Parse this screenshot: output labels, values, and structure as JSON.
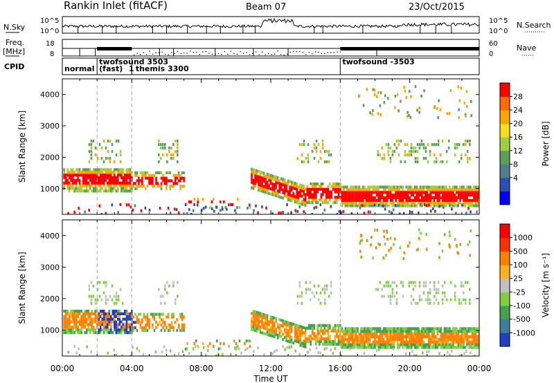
{
  "header": {
    "station": "Rankin Inlet (fitACF)",
    "beam": "Beam 07",
    "date": "23/Oct/2015"
  },
  "noise_panel": {
    "left_label": "N.Sky",
    "right_label": "N.Search",
    "left_ticks": [
      "10^5",
      "10^0"
    ],
    "right_ticks": [
      "10^5",
      "10^0"
    ]
  },
  "freq_panel": {
    "left_label_1": "Freq.",
    "left_label_2": "[MHz]",
    "right_label": "Nave",
    "left_ticks": [
      "18",
      "8"
    ],
    "right_ticks": [
      "60",
      "0"
    ]
  },
  "cpid_panel": {
    "label": "CPID",
    "modes": [
      {
        "text": "normal",
        "start_hour": 0.0
      },
      {
        "text": "twofsound 3503",
        "start_hour": 2.0
      },
      {
        "text": "(fast)",
        "start_hour": 2.0
      },
      {
        "text": "1",
        "start_hour": 3.9
      },
      {
        "text": "themis 3300",
        "start_hour": 4.1
      },
      {
        "text": "twofsound -3503",
        "start_hour": 16.0
      }
    ],
    "mode_change_hours": [
      2.0,
      4.0,
      16.0
    ]
  },
  "chart_data": [
    {
      "type": "heatmap",
      "name": "power",
      "ylabel": "Slant Range [km]",
      "xlim": [
        0,
        24
      ],
      "ylim": [
        180,
        4500
      ],
      "y_ticks": [
        1000,
        2000,
        3000,
        4000
      ],
      "colorbar": {
        "label": "Power [dB]",
        "range": [
          0,
          32
        ],
        "ticks": [
          "28",
          "24",
          "20",
          "16",
          "12",
          "8",
          "4"
        ],
        "colors": [
          "#0000ff",
          "#2a50b8",
          "#4f7f8c",
          "#5aa05a",
          "#9fcf3f",
          "#f6e01a",
          "#ffa500",
          "#ff6a00",
          "#ff0000"
        ]
      }
    },
    {
      "type": "heatmap",
      "name": "velocity",
      "ylabel": "Slant Range [km]",
      "xlabel": "Time UT",
      "xlim": [
        0,
        24
      ],
      "ylim": [
        180,
        4500
      ],
      "y_ticks": [
        1000,
        2000,
        3000,
        4000
      ],
      "x_ticks": [
        "00:00",
        "04:00",
        "08:00",
        "12:00",
        "16:00",
        "20:00",
        "00:00"
      ],
      "x_tick_hours": [
        0,
        4,
        8,
        12,
        16,
        20,
        24
      ],
      "colorbar": {
        "label": "Velocity [m s⁻¹]",
        "ticks": [
          "1000",
          "500",
          "100",
          "25",
          "-25",
          "-100",
          "-500",
          "-1000"
        ],
        "colors": [
          "#2040c0",
          "#3d7f9a",
          "#44a050",
          "#7fd040",
          "#bfbfbf",
          "#ffb020",
          "#ff8000",
          "#ff3000",
          "#ff0000"
        ]
      }
    }
  ]
}
